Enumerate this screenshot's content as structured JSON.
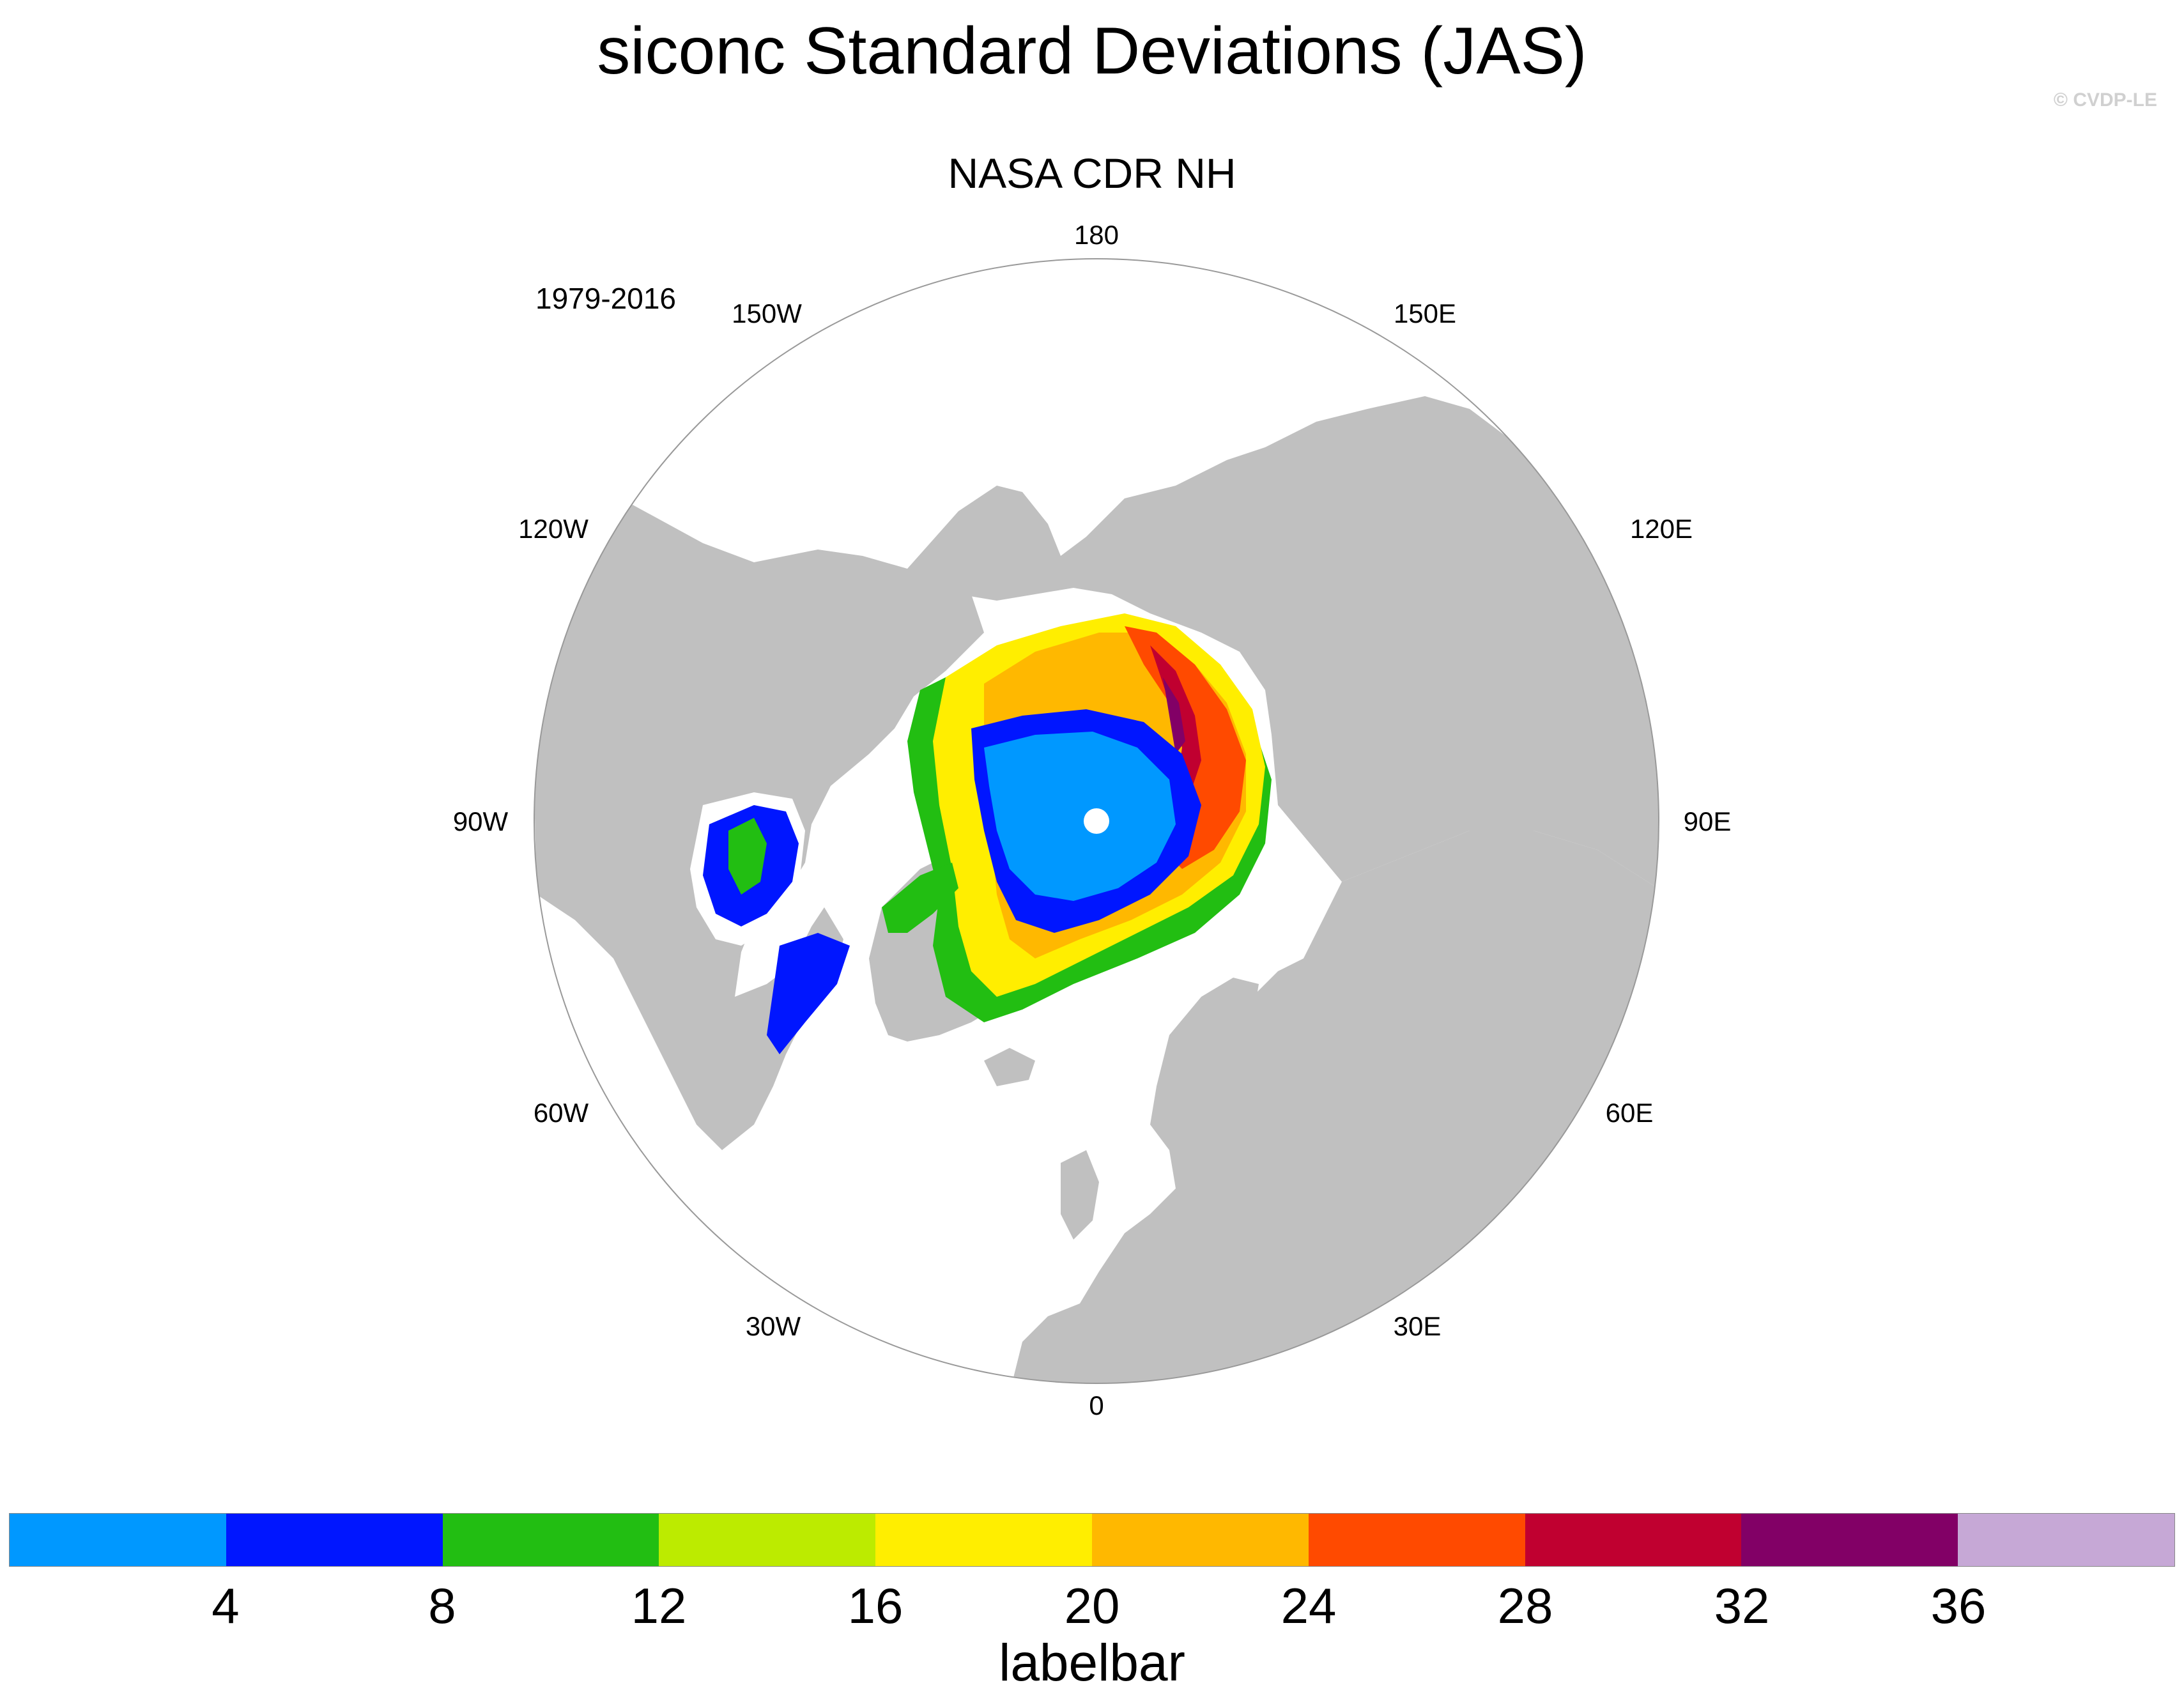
{
  "title": "siconc Standard Deviations (JAS)",
  "copyright": "© CVDP-LE",
  "subtitle": "NASA CDR NH",
  "period": "1979-2016",
  "longitude_labels": [
    "180",
    "150E",
    "120E",
    "90E",
    "60E",
    "30E",
    "0",
    "30W",
    "60W",
    "90W",
    "120W",
    "150W"
  ],
  "colors": {
    "land": "#c0c0c0",
    "ocean": "#ffffff",
    "pole_hole": "#ffffff"
  },
  "labelbar": {
    "label": "labelbar",
    "ticks": [
      "4",
      "8",
      "12",
      "16",
      "20",
      "24",
      "28",
      "32",
      "36"
    ],
    "colors": [
      "#0098ff",
      "#0016ff",
      "#22be12",
      "#bceb00",
      "#ffee00",
      "#ffb800",
      "#ff4a00",
      "#c00030",
      "#820066",
      "#c6a8d6"
    ]
  }
}
